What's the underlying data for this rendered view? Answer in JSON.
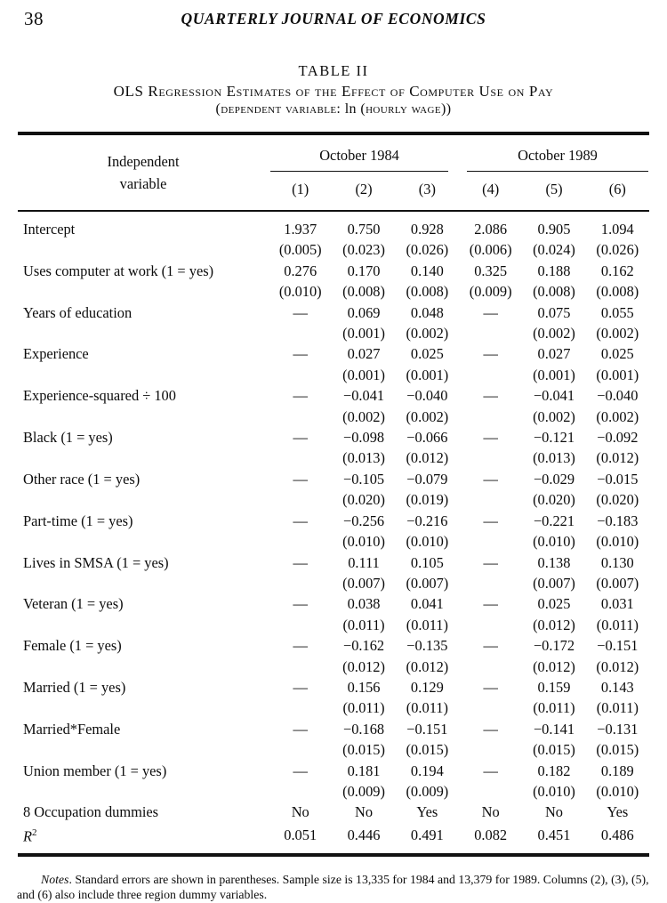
{
  "page": {
    "number": "38",
    "running_head": "QUARTERLY JOURNAL OF ECONOMICS"
  },
  "table": {
    "label": "TABLE II",
    "title": "OLS Regression Estimates of the Effect of Computer Use on Pay",
    "subtitle_prefix": "(dependent variable: ",
    "subtitle_ln": "ln",
    "subtitle_suffix": " (hourly wage))",
    "stub_head_line1": "Independent",
    "stub_head_line2": "variable",
    "group_headers": [
      "October 1984",
      "October 1989"
    ],
    "column_headers": [
      "(1)",
      "(2)",
      "(3)",
      "(4)",
      "(5)",
      "(6)"
    ],
    "rows": [
      {
        "label": "Intercept",
        "values": [
          "1.937",
          "0.750",
          "0.928",
          "2.086",
          "0.905",
          "1.094"
        ],
        "se": [
          "(0.005)",
          "(0.023)",
          "(0.026)",
          "(0.006)",
          "(0.024)",
          "(0.026)"
        ]
      },
      {
        "label": "Uses computer at work (1 = yes)",
        "values": [
          "0.276",
          "0.170",
          "0.140",
          "0.325",
          "0.188",
          "0.162"
        ],
        "se": [
          "(0.010)",
          "(0.008)",
          "(0.008)",
          "(0.009)",
          "(0.008)",
          "(0.008)"
        ]
      },
      {
        "label": "Years of education",
        "values": [
          "—",
          "0.069",
          "0.048",
          "—",
          "0.075",
          "0.055"
        ],
        "se": [
          "",
          "(0.001)",
          "(0.002)",
          "",
          "(0.002)",
          "(0.002)"
        ]
      },
      {
        "label": "Experience",
        "values": [
          "—",
          "0.027",
          "0.025",
          "—",
          "0.027",
          "0.025"
        ],
        "se": [
          "",
          "(0.001)",
          "(0.001)",
          "",
          "(0.001)",
          "(0.001)"
        ]
      },
      {
        "label": "Experience-squared ÷ 100",
        "values": [
          "—",
          "−0.041",
          "−0.040",
          "—",
          "−0.041",
          "−0.040"
        ],
        "se": [
          "",
          "(0.002)",
          "(0.002)",
          "",
          "(0.002)",
          "(0.002)"
        ]
      },
      {
        "label": "Black (1 = yes)",
        "values": [
          "—",
          "−0.098",
          "−0.066",
          "—",
          "−0.121",
          "−0.092"
        ],
        "se": [
          "",
          "(0.013)",
          "(0.012)",
          "",
          "(0.013)",
          "(0.012)"
        ]
      },
      {
        "label": "Other race (1 = yes)",
        "values": [
          "—",
          "−0.105",
          "−0.079",
          "—",
          "−0.029",
          "−0.015"
        ],
        "se": [
          "",
          "(0.020)",
          "(0.019)",
          "",
          "(0.020)",
          "(0.020)"
        ]
      },
      {
        "label": "Part-time (1 = yes)",
        "values": [
          "—",
          "−0.256",
          "−0.216",
          "—",
          "−0.221",
          "−0.183"
        ],
        "se": [
          "",
          "(0.010)",
          "(0.010)",
          "",
          "(0.010)",
          "(0.010)"
        ]
      },
      {
        "label": "Lives in SMSA (1 = yes)",
        "values": [
          "—",
          "0.111",
          "0.105",
          "—",
          "0.138",
          "0.130"
        ],
        "se": [
          "",
          "(0.007)",
          "(0.007)",
          "",
          "(0.007)",
          "(0.007)"
        ]
      },
      {
        "label": "Veteran (1 = yes)",
        "values": [
          "—",
          "0.038",
          "0.041",
          "—",
          "0.025",
          "0.031"
        ],
        "se": [
          "",
          "(0.011)",
          "(0.011)",
          "",
          "(0.012)",
          "(0.011)"
        ]
      },
      {
        "label": "Female (1 = yes)",
        "values": [
          "—",
          "−0.162",
          "−0.135",
          "—",
          "−0.172",
          "−0.151"
        ],
        "se": [
          "",
          "(0.012)",
          "(0.012)",
          "",
          "(0.012)",
          "(0.012)"
        ]
      },
      {
        "label": "Married (1 = yes)",
        "values": [
          "—",
          "0.156",
          "0.129",
          "—",
          "0.159",
          "0.143"
        ],
        "se": [
          "",
          "(0.011)",
          "(0.011)",
          "",
          "(0.011)",
          "(0.011)"
        ]
      },
      {
        "label": "Married*Female",
        "values": [
          "—",
          "−0.168",
          "−0.151",
          "—",
          "−0.141",
          "−0.131"
        ],
        "se": [
          "",
          "(0.015)",
          "(0.015)",
          "",
          "(0.015)",
          "(0.015)"
        ]
      },
      {
        "label": "Union member (1 = yes)",
        "values": [
          "—",
          "0.181",
          "0.194",
          "—",
          "0.182",
          "0.189"
        ],
        "se": [
          "",
          "(0.009)",
          "(0.009)",
          "",
          "(0.010)",
          "(0.010)"
        ]
      },
      {
        "label": "8 Occupation dummies",
        "values": [
          "No",
          "No",
          "Yes",
          "No",
          "No",
          "Yes"
        ],
        "se": null
      },
      {
        "label": "R",
        "label_sup": "2",
        "italic": true,
        "values": [
          "0.051",
          "0.446",
          "0.491",
          "0.082",
          "0.451",
          "0.486"
        ],
        "se": null
      }
    ]
  },
  "notes": {
    "lead_word": "Notes",
    "body": ". Standard errors are shown in parentheses. Sample size is 13,335 for 1984 and 13,379 for 1989. Columns (2), (3), (5), and (6) also include three region dummy variables."
  }
}
